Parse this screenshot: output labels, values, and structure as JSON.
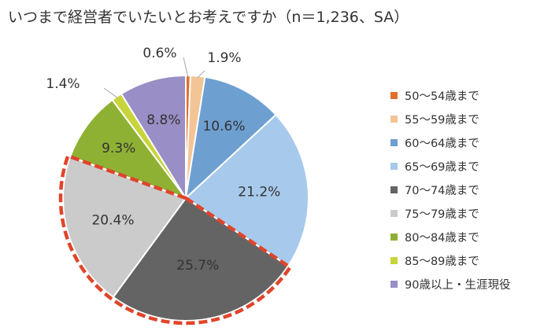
{
  "chart_data": {
    "type": "pie",
    "title": "いつまで経営者でいたいとお考えですか（n＝1,236、SA）",
    "categories": [
      "50～54歳まで",
      "55～59歳まで",
      "60～64歳まで",
      "65～69歳まで",
      "70～74歳まで",
      "75～79歳まで",
      "80～84歳まで",
      "85～89歳まで",
      "90歳以上・生涯現役"
    ],
    "values": [
      0.6,
      1.9,
      10.6,
      21.2,
      25.7,
      20.4,
      9.3,
      1.4,
      8.8
    ],
    "value_labels": [
      "0.6%",
      "1.9%",
      "10.6%",
      "21.2%",
      "25.7%",
      "20.4%",
      "9.3%",
      "1.4%",
      "8.8%"
    ],
    "colors": [
      "#e0702b",
      "#f3c495",
      "#6e9fd1",
      "#a7c9eb",
      "#646464",
      "#cbcbcb",
      "#8eb134",
      "#c9d43a",
      "#9a8ec6"
    ],
    "label_colors": [
      "#333333",
      "#333333",
      "#333333",
      "#333333",
      "#ffffff",
      "#333333",
      "#333333",
      "#333333",
      "#333333"
    ],
    "highlighted_categories": [
      "70～74歳まで",
      "75～79歳まで"
    ],
    "highlight_color": "#e0452b",
    "legend_position": "right"
  }
}
